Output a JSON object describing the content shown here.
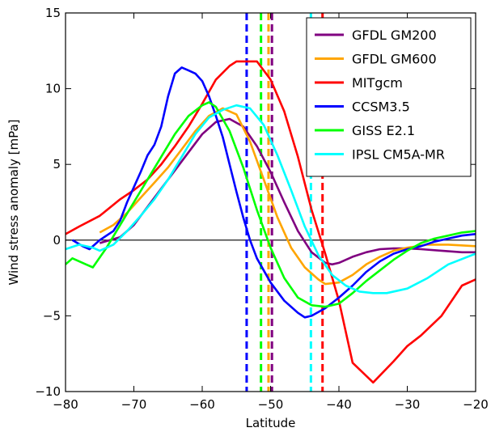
{
  "chart_data": {
    "type": "line",
    "xlabel": "Latitude",
    "ylabel": "Wind stress anomaly [mPa]",
    "xlim": [
      -80,
      -20
    ],
    "ylim": [
      -10,
      15
    ],
    "xticks": [
      -80,
      -70,
      -60,
      -50,
      -40,
      -30,
      -20
    ],
    "yticks": [
      -10,
      -5,
      0,
      5,
      10,
      15
    ],
    "xtick_labels": [
      "−80",
      "−70",
      "−60",
      "−50",
      "−40",
      "−30",
      "−20"
    ],
    "ytick_labels": [
      "−10",
      "−5",
      "0",
      "5",
      "10",
      "15"
    ],
    "zero_line": true,
    "grid": false,
    "legend_position": "top-right",
    "series": [
      {
        "name": "GFDL GM200",
        "color": "#800080",
        "dash_x": -49.8,
        "points": [
          [
            -75,
            -0.2
          ],
          [
            -72,
            0.2
          ],
          [
            -70,
            1
          ],
          [
            -68,
            2.2
          ],
          [
            -66,
            3.4
          ],
          [
            -64,
            4.6
          ],
          [
            -62,
            5.8
          ],
          [
            -60,
            7
          ],
          [
            -58,
            7.8
          ],
          [
            -56,
            8
          ],
          [
            -54,
            7.5
          ],
          [
            -52,
            6.2
          ],
          [
            -50,
            4.5
          ],
          [
            -48,
            2.5
          ],
          [
            -46,
            0.6
          ],
          [
            -44,
            -0.8
          ],
          [
            -42,
            -1.5
          ],
          [
            -41,
            -1.6
          ],
          [
            -40,
            -1.5
          ],
          [
            -38,
            -1.1
          ],
          [
            -36,
            -0.8
          ],
          [
            -34,
            -0.6
          ],
          [
            -32,
            -0.55
          ],
          [
            -30,
            -0.55
          ],
          [
            -28,
            -0.6
          ],
          [
            -25,
            -0.7
          ],
          [
            -22,
            -0.8
          ],
          [
            -20,
            -0.8
          ]
        ]
      },
      {
        "name": "GFDL GM600",
        "color": "#ffa500",
        "dash_x": -50.3,
        "points": [
          [
            -75,
            0.5
          ],
          [
            -73,
            1
          ],
          [
            -71,
            1.8
          ],
          [
            -69,
            2.8
          ],
          [
            -67,
            3.8
          ],
          [
            -65,
            4.8
          ],
          [
            -63,
            6
          ],
          [
            -61,
            7.2
          ],
          [
            -59,
            8.2
          ],
          [
            -57,
            8.7
          ],
          [
            -55,
            8.3
          ],
          [
            -53,
            6.5
          ],
          [
            -51,
            4
          ],
          [
            -49,
            1.5
          ],
          [
            -47,
            -0.5
          ],
          [
            -45,
            -1.8
          ],
          [
            -43,
            -2.6
          ],
          [
            -42,
            -2.9
          ],
          [
            -40,
            -2.8
          ],
          [
            -38,
            -2.3
          ],
          [
            -36,
            -1.6
          ],
          [
            -34,
            -1.1
          ],
          [
            -32,
            -0.7
          ],
          [
            -30,
            -0.5
          ],
          [
            -27,
            -0.3
          ],
          [
            -24,
            -0.3
          ],
          [
            -20,
            -0.4
          ]
        ]
      },
      {
        "name": "MITgcm",
        "color": "#ff0000",
        "dash_x": -42.4,
        "points": [
          [
            -80,
            0.4
          ],
          [
            -78,
            0.9
          ],
          [
            -75,
            1.6
          ],
          [
            -72,
            2.7
          ],
          [
            -70,
            3.3
          ],
          [
            -68,
            4
          ],
          [
            -66,
            5
          ],
          [
            -64,
            6.2
          ],
          [
            -62,
            7.5
          ],
          [
            -60,
            9
          ],
          [
            -58,
            10.6
          ],
          [
            -56,
            11.5
          ],
          [
            -55,
            11.8
          ],
          [
            -52,
            11.8
          ],
          [
            -50,
            10.6
          ],
          [
            -48,
            8.5
          ],
          [
            -46,
            5.5
          ],
          [
            -44,
            2
          ],
          [
            -42,
            -0.9
          ],
          [
            -40,
            -4
          ],
          [
            -38,
            -8.1
          ],
          [
            -35,
            -9.4
          ],
          [
            -32,
            -8
          ],
          [
            -30,
            -7
          ],
          [
            -28,
            -6.3
          ],
          [
            -25,
            -5
          ],
          [
            -22,
            -3
          ],
          [
            -20,
            -2.6
          ]
        ]
      },
      {
        "name": "CCSM3.5",
        "color": "#0000ff",
        "dash_x": -53.5,
        "points": [
          [
            -79,
            0
          ],
          [
            -77.5,
            -0.4
          ],
          [
            -76.5,
            -0.6
          ],
          [
            -75,
            0
          ],
          [
            -73,
            0.6
          ],
          [
            -72,
            1.3
          ],
          [
            -71,
            2.5
          ],
          [
            -70,
            3.5
          ],
          [
            -69,
            4.5
          ],
          [
            -68,
            5.6
          ],
          [
            -67,
            6.3
          ],
          [
            -66,
            7.5
          ],
          [
            -65,
            9.5
          ],
          [
            -64,
            11
          ],
          [
            -63,
            11.4
          ],
          [
            -62,
            11.2
          ],
          [
            -61,
            11
          ],
          [
            -60,
            10.5
          ],
          [
            -59,
            9.5
          ],
          [
            -58,
            8.2
          ],
          [
            -57,
            6.8
          ],
          [
            -56,
            5
          ],
          [
            -55,
            3.2
          ],
          [
            -54,
            1.5
          ],
          [
            -53,
            0
          ],
          [
            -52,
            -1.2
          ],
          [
            -50,
            -2.8
          ],
          [
            -48,
            -4
          ],
          [
            -46,
            -4.8
          ],
          [
            -45,
            -5.1
          ],
          [
            -44,
            -5
          ],
          [
            -42,
            -4.5
          ],
          [
            -40,
            -3.8
          ],
          [
            -38,
            -3
          ],
          [
            -36,
            -2.1
          ],
          [
            -34,
            -1.4
          ],
          [
            -32,
            -0.9
          ],
          [
            -30,
            -0.6
          ],
          [
            -28,
            -0.4
          ],
          [
            -26,
            -0.1
          ],
          [
            -24,
            0.1
          ],
          [
            -22,
            0.3
          ],
          [
            -20,
            0.4
          ]
        ]
      },
      {
        "name": "GISS E2.1",
        "color": "#00ff00",
        "dash_x": -51.4,
        "points": [
          [
            -80,
            -1.6
          ],
          [
            -79,
            -1.2
          ],
          [
            -77,
            -1.6
          ],
          [
            -76,
            -1.8
          ],
          [
            -74,
            -0.5
          ],
          [
            -72,
            1
          ],
          [
            -70,
            2.5
          ],
          [
            -68,
            4
          ],
          [
            -66,
            5.5
          ],
          [
            -64,
            7
          ],
          [
            -62,
            8.2
          ],
          [
            -60,
            8.9
          ],
          [
            -59,
            9.1
          ],
          [
            -58,
            8.8
          ],
          [
            -56,
            7.2
          ],
          [
            -54,
            4.8
          ],
          [
            -52,
            2
          ],
          [
            -50,
            -0.5
          ],
          [
            -48,
            -2.5
          ],
          [
            -46,
            -3.8
          ],
          [
            -44,
            -4.3
          ],
          [
            -42,
            -4.4
          ],
          [
            -40,
            -4.2
          ],
          [
            -38,
            -3.5
          ],
          [
            -36,
            -2.7
          ],
          [
            -34,
            -2
          ],
          [
            -32,
            -1.3
          ],
          [
            -30,
            -0.7
          ],
          [
            -28,
            -0.2
          ],
          [
            -26,
            0.1
          ],
          [
            -24,
            0.3
          ],
          [
            -22,
            0.5
          ],
          [
            -20,
            0.6
          ]
        ]
      },
      {
        "name": "IPSL CM5A-MR",
        "color": "#00ffff",
        "dash_x": -44.1,
        "points": [
          [
            -80,
            -0.6
          ],
          [
            -78,
            -0.3
          ],
          [
            -76,
            -0.5
          ],
          [
            -75,
            -0.7
          ],
          [
            -73,
            -0.3
          ],
          [
            -71,
            0.6
          ],
          [
            -69,
            1.6
          ],
          [
            -67,
            2.7
          ],
          [
            -65,
            4
          ],
          [
            -63,
            5.5
          ],
          [
            -61,
            7
          ],
          [
            -59,
            8.1
          ],
          [
            -57,
            8.6
          ],
          [
            -55,
            8.9
          ],
          [
            -53,
            8.7
          ],
          [
            -51,
            7.6
          ],
          [
            -49,
            5.6
          ],
          [
            -47,
            3.3
          ],
          [
            -45,
            0.9
          ],
          [
            -43,
            -1
          ],
          [
            -41,
            -2.3
          ],
          [
            -39,
            -3
          ],
          [
            -37,
            -3.4
          ],
          [
            -35,
            -3.5
          ],
          [
            -33,
            -3.5
          ],
          [
            -30,
            -3.2
          ],
          [
            -27,
            -2.5
          ],
          [
            -24,
            -1.6
          ],
          [
            -20,
            -0.9
          ]
        ]
      }
    ]
  }
}
